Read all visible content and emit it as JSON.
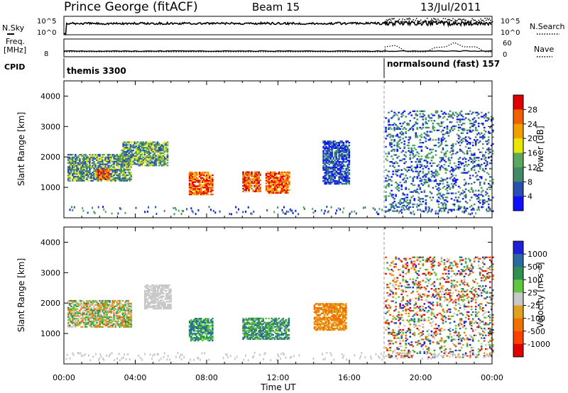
{
  "header": {
    "station": "Prince George (fitACF)",
    "beam": "Beam 15",
    "date": "13/Jul/2011"
  },
  "status_panels": {
    "nsky_label": "N.Sky",
    "nsearch_label": "N.Search",
    "nsky_ticks": [
      "10^5",
      "10^0"
    ],
    "nsearch_ticks": [
      "10^5",
      "10^0"
    ],
    "freq_label_top": "Freq.",
    "freq_label_bottom": "[MHz]",
    "freq_tick": "8",
    "nave_label": "Nave",
    "nave_ticks": [
      "60",
      "0"
    ],
    "cpid_label": "CPID",
    "cpid_modes": [
      {
        "name": "themis 3300",
        "start_hour": 0
      },
      {
        "name": "normalsound (fast) 157",
        "start_hour": 18
      }
    ]
  },
  "colors": {
    "power_scale": [
      "#1010ff",
      "#2850b0",
      "#408a68",
      "#5aa860",
      "#e6e600",
      "#f0a000",
      "#f06000",
      "#e00000"
    ],
    "velocity_scale": [
      "#2020d8",
      "#2a6aa0",
      "#2f9050",
      "#60c840",
      "#c8c8c8",
      "#e0a020",
      "#f07000",
      "#ff4000",
      "#e00000"
    ]
  },
  "chart_data": [
    {
      "type": "heatmap",
      "panel": "power",
      "title": "Power",
      "ylabel": "Slant Range [km]",
      "xlabel": "Time UT",
      "x_range_hours": [
        0,
        24
      ],
      "x_ticks": [
        "00:00",
        "04:00",
        "08:00",
        "12:00",
        "16:00",
        "20:00",
        "00:00"
      ],
      "ylim": [
        0,
        4500
      ],
      "y_ticks": [
        1000,
        2000,
        3000,
        4000
      ],
      "colorbar_label": "Power [dB]",
      "colorbar_ticks": [
        "4",
        "8",
        "12",
        "16",
        "20",
        "24",
        "28"
      ],
      "features": [
        {
          "t_start": 0.2,
          "t_end": 3.8,
          "r_low": 1200,
          "r_high": 2100,
          "level": "moderate"
        },
        {
          "t_start": 1.8,
          "t_end": 2.6,
          "r_low": 1250,
          "r_high": 1600,
          "level": "strong"
        },
        {
          "t_start": 3.2,
          "t_end": 5.8,
          "r_low": 1700,
          "r_high": 2500,
          "level": "moderate"
        },
        {
          "t_start": 7.0,
          "t_end": 8.3,
          "r_low": 750,
          "r_high": 1500,
          "level": "strong"
        },
        {
          "t_start": 10.0,
          "t_end": 11.0,
          "r_low": 850,
          "r_high": 1500,
          "level": "strong"
        },
        {
          "t_start": 11.3,
          "t_end": 12.6,
          "r_low": 800,
          "r_high": 1500,
          "level": "strong"
        },
        {
          "t_start": 14.5,
          "t_end": 16.0,
          "r_low": 1100,
          "r_high": 2500,
          "level": "weak"
        },
        {
          "t_start": 18.0,
          "t_end": 24.0,
          "r_low": 200,
          "r_high": 3500,
          "level": "scattered"
        }
      ]
    },
    {
      "type": "heatmap",
      "panel": "velocity",
      "title": "Velocity",
      "ylabel": "Slant Range [km]",
      "xlabel": "Time UT",
      "x_range_hours": [
        0,
        24
      ],
      "x_ticks": [
        "00:00",
        "04:00",
        "08:00",
        "12:00",
        "16:00",
        "20:00",
        "00:00"
      ],
      "ylim": [
        0,
        4500
      ],
      "y_ticks": [
        1000,
        2000,
        3000,
        4000
      ],
      "colorbar_label": "Velocity [m s⁻¹]",
      "colorbar_ticks": [
        "1000",
        "500",
        "100",
        "25",
        "-25",
        "-100",
        "-500",
        "-1000"
      ],
      "features": [
        {
          "t_start": 0.2,
          "t_end": 3.8,
          "r_low": 1200,
          "r_high": 2100,
          "level": "mixed_green_orange"
        },
        {
          "t_start": 4.5,
          "t_end": 6.0,
          "r_low": 1800,
          "r_high": 2600,
          "level": "ground_scatter"
        },
        {
          "t_start": 7.0,
          "t_end": 8.3,
          "r_low": 750,
          "r_high": 1500,
          "level": "toward_green"
        },
        {
          "t_start": 10.0,
          "t_end": 12.6,
          "r_low": 800,
          "r_high": 1500,
          "level": "toward_green"
        },
        {
          "t_start": 14.0,
          "t_end": 15.8,
          "r_low": 1100,
          "r_high": 2000,
          "level": "away_orange"
        },
        {
          "t_start": 18.0,
          "t_end": 24.0,
          "r_low": 200,
          "r_high": 3500,
          "level": "scattered"
        }
      ]
    }
  ]
}
